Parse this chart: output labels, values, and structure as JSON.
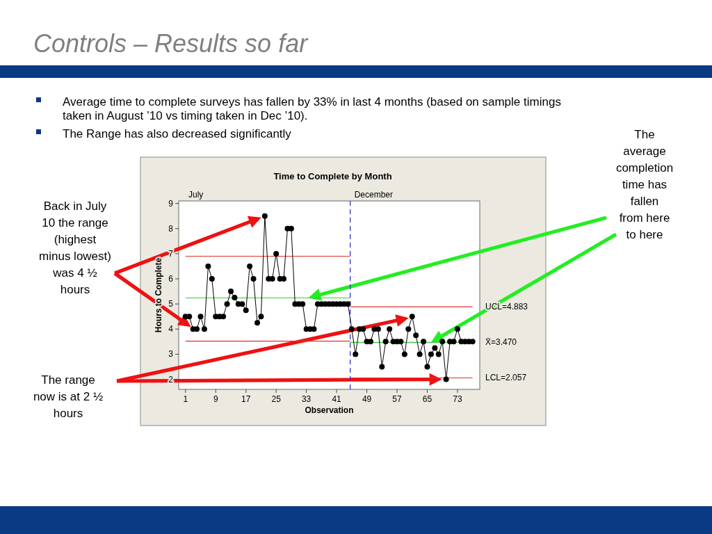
{
  "chart_data": {
    "type": "line",
    "title": "Time to Complete by Month",
    "xlabel": "Observation",
    "ylabel": "Hours to Complete",
    "annotations": [
      "Controls – Results so far",
      "Average time to complete surveys has fallen by 33% in last 4 months (based on sample timings\ntaken in August ’10 vs timing taken in Dec ’10).",
      "The Range has also decreased significantly",
      "The\naverage\ncompletion\ntime has\nfallen\nfrom here\nto here",
      "Back in July\n10 the range\n(highest\nminus lowest)\nwas 4 ½\nhours",
      "The range\nnow is at 2 ½\nhours",
      "July",
      "December",
      "UCL=4.883",
      "X̄=3.470",
      "LCL=2.057"
    ],
    "xlim": [
      -0.8,
      78.9
    ],
    "xticks": [
      1,
      9,
      17,
      25,
      33,
      41,
      49,
      57,
      65,
      73
    ],
    "ylim": [
      1.6,
      9.1
    ],
    "yticks": [
      2,
      3,
      4,
      5,
      6,
      7,
      8,
      9
    ],
    "marker": "circle",
    "ref_lines": [
      {
        "axis": "x",
        "value": 44.6,
        "color": "#3333cc",
        "line_style": "dashed"
      }
    ],
    "series": [
      {
        "color": "#000000",
        "x": [
          1,
          2,
          3,
          4,
          5,
          6,
          7,
          8,
          9,
          10,
          11,
          12,
          13,
          14,
          15,
          16,
          17,
          18,
          19,
          20,
          21,
          22,
          23,
          24,
          25,
          26,
          27,
          28,
          29,
          30,
          31,
          32,
          33,
          34,
          35,
          36,
          37,
          38,
          39,
          40,
          41,
          42,
          43,
          44,
          45,
          46,
          47,
          48,
          49,
          50,
          51,
          52,
          53,
          54,
          55,
          56,
          57,
          58,
          59,
          60,
          61,
          62,
          63,
          64,
          65,
          66,
          67,
          68,
          69,
          70,
          71,
          72,
          73,
          74,
          75,
          76,
          77
        ],
        "values": [
          4.5,
          4.5,
          4,
          4,
          4.5,
          4,
          6.5,
          6,
          4.5,
          4.5,
          4.5,
          5,
          5.5,
          5.25,
          5,
          5,
          4.75,
          6.5,
          6,
          4.25,
          4.5,
          8.5,
          6,
          6,
          7,
          6,
          6,
          8,
          8,
          5,
          5,
          5,
          4,
          4,
          4,
          5,
          5,
          5,
          5,
          5,
          5,
          5,
          5,
          5,
          4,
          3,
          4,
          4,
          3.5,
          3.5,
          4,
          4,
          2.5,
          3.5,
          4,
          3.5,
          3.5,
          3.5,
          3,
          4,
          4.5,
          3.75,
          3,
          3.5,
          2.5,
          3,
          3.25,
          3,
          3.5,
          2,
          3.5,
          3.5,
          4,
          3.5,
          3.5,
          3.5,
          3.5
        ]
      },
      {
        "color": "#e03030",
        "marker": "none",
        "x": [
          1,
          44.6
        ],
        "values": [
          6.9,
          6.9
        ]
      },
      {
        "color": "#33cc33",
        "marker": "none",
        "x": [
          1,
          44.6
        ],
        "values": [
          5.24,
          5.24
        ]
      },
      {
        "color": "#e03030",
        "marker": "none",
        "x": [
          1,
          44.6
        ],
        "values": [
          3.52,
          3.52
        ]
      },
      {
        "color": "#e03030",
        "marker": "none",
        "x": [
          44.6,
          77
        ],
        "values": [
          4.883,
          4.883
        ]
      },
      {
        "color": "#33cc33",
        "marker": "none",
        "x": [
          44.6,
          77
        ],
        "values": [
          3.47,
          3.47
        ]
      },
      {
        "color": "#e03030",
        "marker": "none",
        "x": [
          44.6,
          77
        ],
        "values": [
          2.057,
          2.057
        ]
      }
    ]
  }
}
